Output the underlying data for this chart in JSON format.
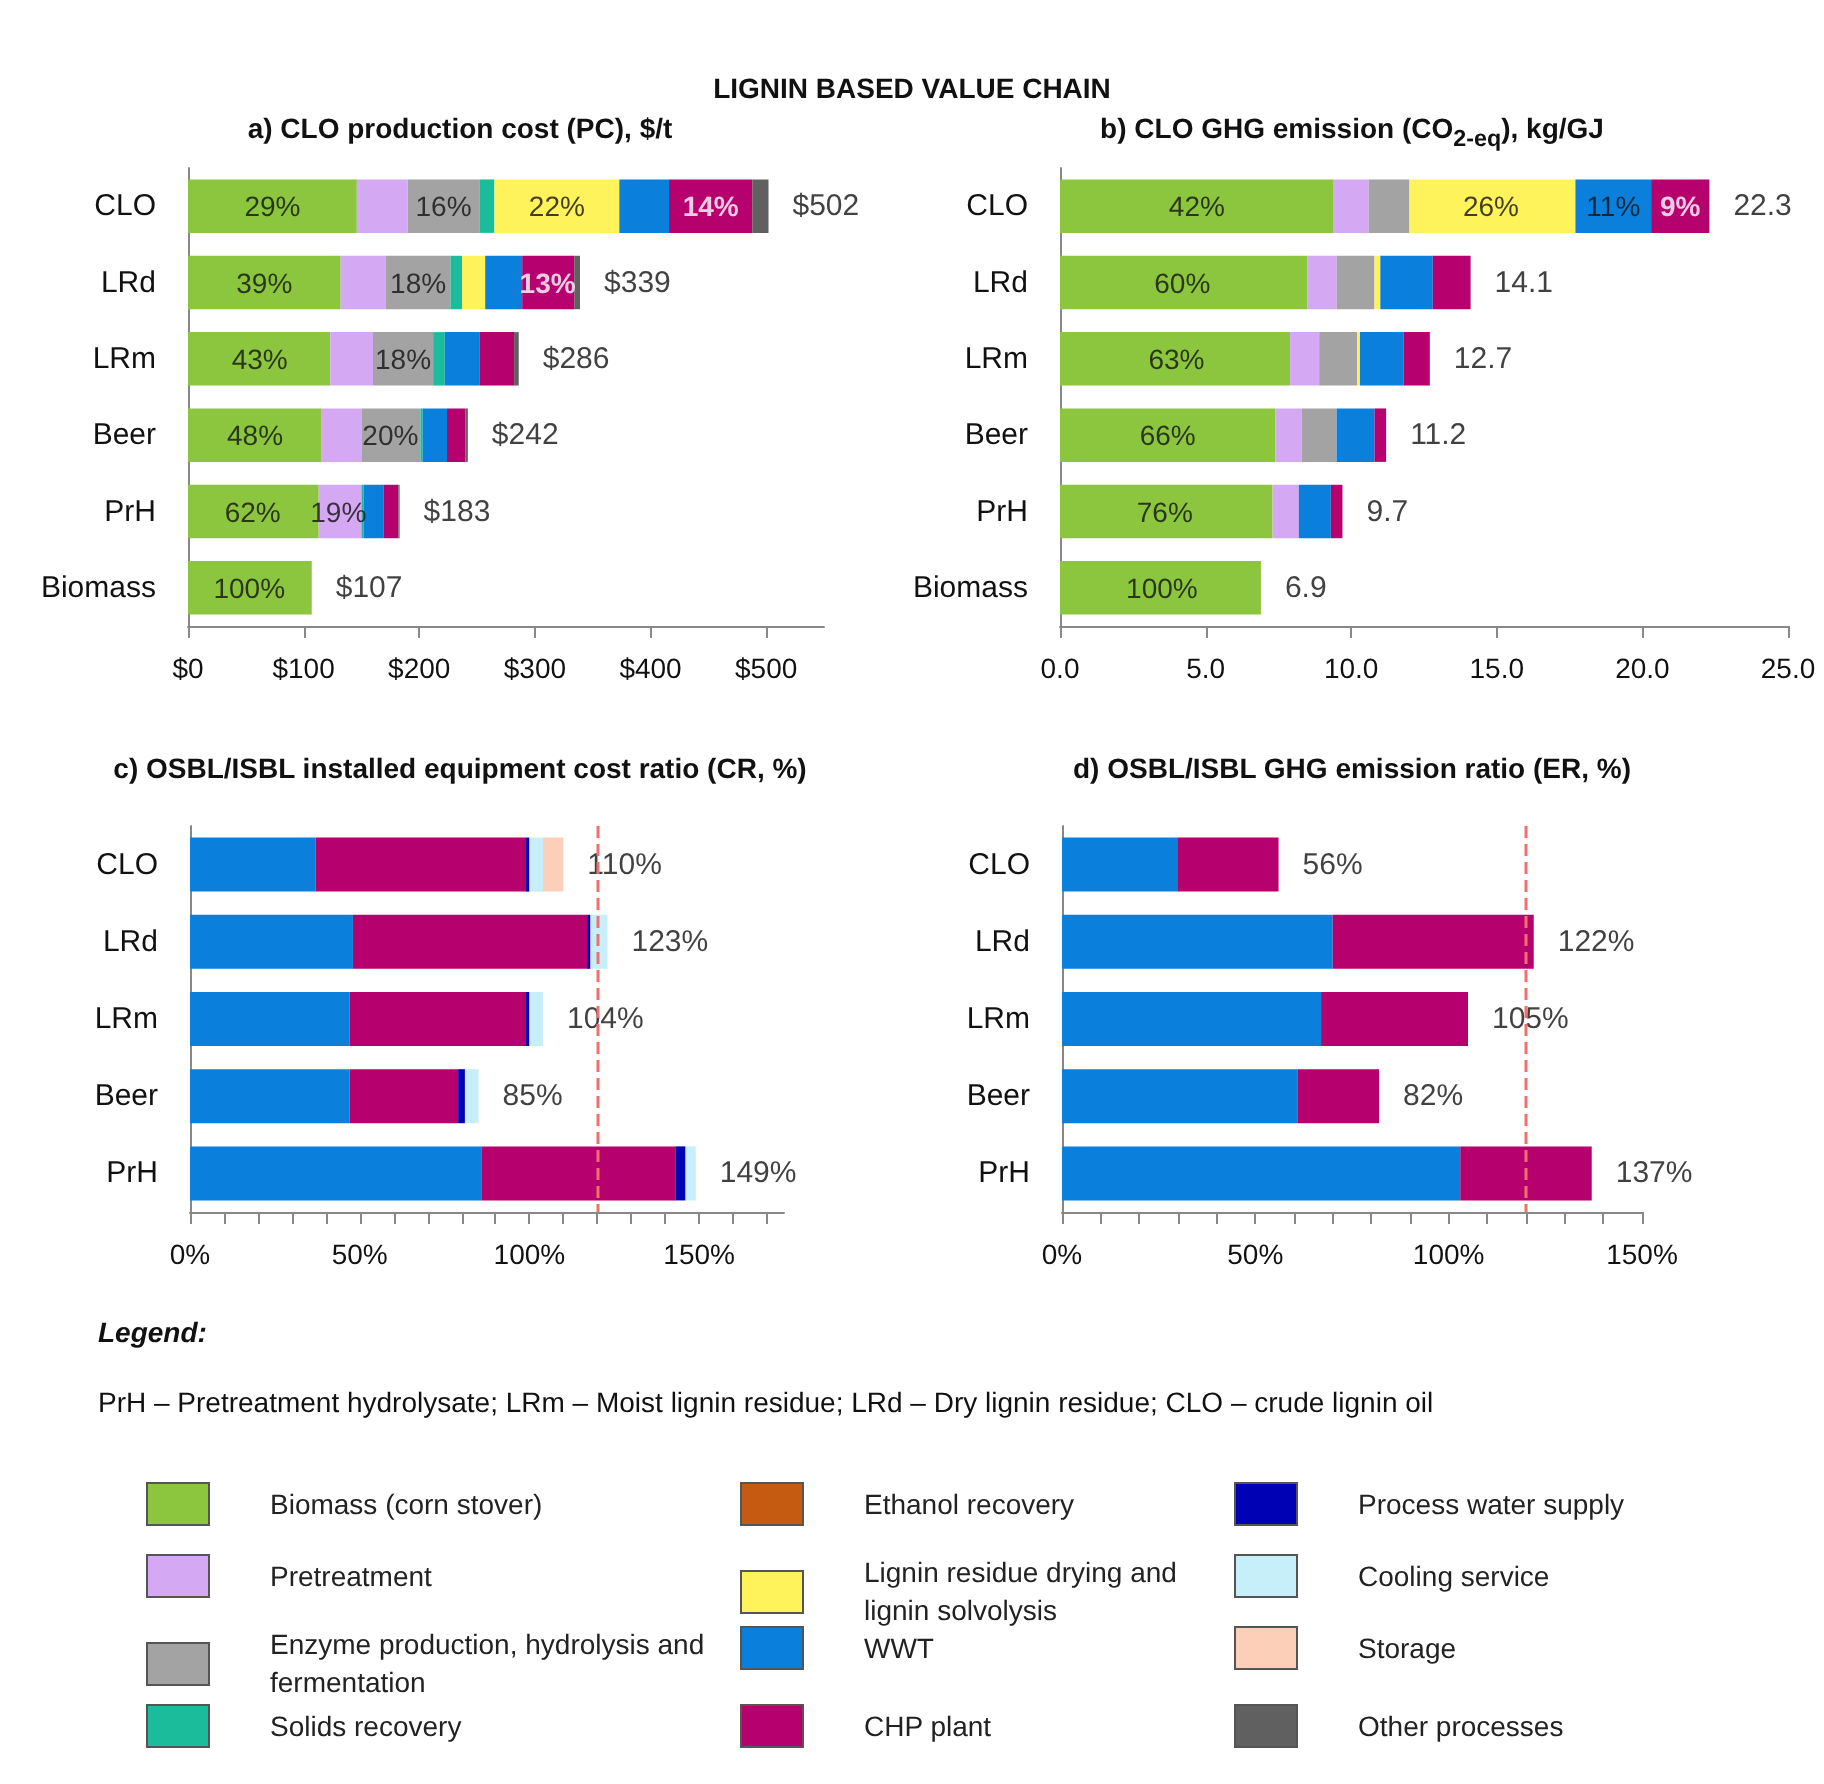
{
  "chart_data": [
    {
      "type": "bar",
      "orientation": "horizontal",
      "stacked": true,
      "title": "a) CLO production cost (PC), $/t",
      "annotations": [
        "LIGNIN BASED VALUE CHAIN",
        "Legend:",
        "PrH – Pretreatment hydrolysate;   LRm – Moist lignin residue;  LRd – Dry lignin residue;  CLO – crude lignin oil",
        {
          "text": "29%",
          "x": 73,
          "y": "CLO"
        },
        {
          "text": "16%",
          "x": 221,
          "y": "CLO"
        },
        {
          "text": "22%",
          "x": 319,
          "y": "CLO"
        },
        {
          "text": "14%",
          "x": 452,
          "y": "CLO"
        },
        {
          "text": "39%",
          "x": 66,
          "y": "LRd"
        },
        {
          "text": "18%",
          "x": 199,
          "y": "LRd"
        },
        {
          "text": "13%",
          "x": 311,
          "y": "LRd"
        },
        {
          "text": "43%",
          "x": 62,
          "y": "LRm"
        },
        {
          "text": "18%",
          "x": 186,
          "y": "LRm"
        },
        {
          "text": "48%",
          "x": 58,
          "y": "Beer"
        },
        {
          "text": "20%",
          "x": 175,
          "y": "Beer"
        },
        {
          "text": "62%",
          "x": 56,
          "y": "PrH"
        },
        {
          "text": "19%",
          "x": 130,
          "y": "PrH"
        },
        {
          "text": "100%",
          "x": 53,
          "y": "Biomass"
        }
      ],
      "categories": [
        "CLO",
        "LRd",
        "LRm",
        "Beer",
        "PrH",
        "Biomass"
      ],
      "xlim": [
        0,
        550
      ],
      "xticks": [
        {
          "value": 0,
          "label": "$0"
        },
        {
          "value": 100,
          "label": "$100"
        },
        {
          "value": 200,
          "label": "$200"
        },
        {
          "value": 300,
          "label": "$300"
        },
        {
          "value": 400,
          "label": "$400"
        },
        {
          "value": 500,
          "label": "$500"
        }
      ],
      "legend": "bottom",
      "totals": [
        "$502",
        "$339",
        "$286",
        "$242",
        "$183",
        "$107"
      ],
      "series": [
        {
          "name": "Biomass (corn stover)",
          "color": "#8cc63f",
          "values": [
            146,
            132,
            123,
            115,
            113,
            107
          ]
        },
        {
          "name": "Pretreatment",
          "color": "#d4a8f2",
          "values": [
            44,
            39,
            37,
            35,
            37,
            null
          ]
        },
        {
          "name": "Enzyme production, hydrolysis and fermentation",
          "color": "#a3a3a3",
          "values": [
            62,
            56,
            52,
            51,
            null,
            null
          ]
        },
        {
          "name": "Solids recovery",
          "color": "#1abc9c",
          "values": [
            13,
            10,
            10,
            2,
            2,
            null
          ]
        },
        {
          "name": "Ethanol recovery",
          "color": "#c55a11",
          "values": [
            null,
            null,
            null,
            null,
            null,
            null
          ]
        },
        {
          "name": "Lignin residue drying and lignin solvolysis",
          "color": "#fff35c",
          "values": [
            108,
            20,
            null,
            null,
            null,
            null
          ]
        },
        {
          "name": "WWT",
          "color": "#0a80dc",
          "values": [
            43,
            32,
            30,
            21,
            17,
            null
          ]
        },
        {
          "name": "CHP plant",
          "color": "#b5006e",
          "values": [
            72,
            45,
            30,
            16,
            13,
            null
          ]
        },
        {
          "name": "Process water supply",
          "color": "#0000b4",
          "values": [
            null,
            null,
            null,
            null,
            null,
            null
          ]
        },
        {
          "name": "Cooling service",
          "color": "#c6effa",
          "values": [
            null,
            null,
            null,
            null,
            null,
            null
          ]
        },
        {
          "name": "Storage",
          "color": "#fcd0b8",
          "values": [
            null,
            null,
            null,
            null,
            null,
            null
          ]
        },
        {
          "name": "Other processes",
          "color": "#606060",
          "values": [
            14,
            5,
            4,
            2,
            1,
            null
          ]
        }
      ]
    },
    {
      "type": "bar",
      "orientation": "horizontal",
      "stacked": true,
      "title": "b) CLO GHG emission (CO$_{2-eq}$), kg/GJ",
      "annotations": [
        {
          "text": "42%",
          "x": 4.7,
          "y": "CLO"
        },
        {
          "text": "26%",
          "x": 14.8,
          "y": "CLO"
        },
        {
          "text": "11%",
          "x": 19.0,
          "y": "CLO"
        },
        {
          "text": "9%",
          "x": 21.3,
          "y": "CLO"
        },
        {
          "text": "60%",
          "x": 4.2,
          "y": "LRd"
        },
        {
          "text": "63%",
          "x": 4.0,
          "y": "LRm"
        },
        {
          "text": "66%",
          "x": 3.7,
          "y": "Beer"
        },
        {
          "text": "76%",
          "x": 3.6,
          "y": "PrH"
        },
        {
          "text": "100%",
          "x": 3.5,
          "y": "Biomass"
        }
      ],
      "categories": [
        "CLO",
        "LRd",
        "LRm",
        "Beer",
        "PrH",
        "Biomass"
      ],
      "xlim": [
        0,
        25
      ],
      "xticks": [
        {
          "value": 0,
          "label": "0.0"
        },
        {
          "value": 5,
          "label": "5.0"
        },
        {
          "value": 10,
          "label": "10.0"
        },
        {
          "value": 15,
          "label": "15.0"
        },
        {
          "value": 20,
          "label": "20.0"
        },
        {
          "value": 25,
          "label": "25.0"
        }
      ],
      "totals": [
        "22.3",
        "14.1",
        "12.7",
        "11.2",
        "9.7",
        "6.9"
      ],
      "series": [
        {
          "color": "#8cc63f",
          "values": [
            9.4,
            8.5,
            7.9,
            7.4,
            7.3,
            6.9
          ]
        },
        {
          "color": "#d4a8f2",
          "values": [
            1.2,
            1.0,
            1.0,
            0.9,
            0.9,
            null
          ]
        },
        {
          "color": "#a3a3a3",
          "values": [
            1.4,
            1.3,
            1.3,
            1.2,
            null,
            null
          ]
        },
        {
          "color": "#fff35c",
          "values": [
            5.7,
            0.2,
            0.1,
            null,
            null,
            null
          ]
        },
        {
          "color": "#0a80dc",
          "values": [
            2.6,
            1.8,
            1.5,
            1.3,
            1.1,
            null
          ]
        },
        {
          "color": "#b5006e",
          "values": [
            2.0,
            1.3,
            0.9,
            0.4,
            0.4,
            null
          ]
        }
      ]
    },
    {
      "type": "bar",
      "orientation": "horizontal",
      "stacked": true,
      "title": "c) OSBL/ISBL installed equipment cost ratio (CR, %)",
      "categories": [
        "CLO",
        "LRd",
        "LRm",
        "Beer",
        "PrH"
      ],
      "xlim": [
        0,
        175
      ],
      "xticks": [
        {
          "value": 0,
          "label": "0%"
        },
        {
          "value": 10,
          "label": null
        },
        {
          "value": 20,
          "label": null
        },
        {
          "value": 30,
          "label": null
        },
        {
          "value": 40,
          "label": null
        },
        {
          "value": 50,
          "label": "50%"
        },
        {
          "value": 60,
          "label": null
        },
        {
          "value": 70,
          "label": null
        },
        {
          "value": 80,
          "label": null
        },
        {
          "value": 90,
          "label": null
        },
        {
          "value": 100,
          "label": "100%"
        },
        {
          "value": 110,
          "label": null
        },
        {
          "value": 120,
          "label": null
        },
        {
          "value": 130,
          "label": null
        },
        {
          "value": 140,
          "label": null
        },
        {
          "value": 150,
          "label": "150%"
        },
        {
          "value": 160,
          "label": null
        },
        {
          "value": 170,
          "label": null
        }
      ],
      "totals": [
        "110%",
        "123%",
        "104%",
        "85%",
        "149%"
      ],
      "ref_lines": [
        {
          "axis": "x",
          "value": 120,
          "color": "#f07070",
          "line_style": "dashed"
        }
      ],
      "series": [
        {
          "color": "#0a80dc",
          "values": [
            37,
            48,
            47,
            47,
            86
          ]
        },
        {
          "color": "#b5006e",
          "values": [
            62,
            69,
            52,
            32,
            57
          ]
        },
        {
          "color": "#0000b4",
          "values": [
            1,
            1,
            1,
            2,
            3
          ]
        },
        {
          "color": "#c6effa",
          "values": [
            4,
            5,
            4,
            4,
            3
          ]
        },
        {
          "color": "#fcd0b8",
          "values": [
            6,
            null,
            null,
            null,
            null
          ]
        }
      ]
    },
    {
      "type": "bar",
      "orientation": "horizontal",
      "stacked": true,
      "title": "d) OSBL/ISBL GHG emission ratio (ER, %)",
      "categories": [
        "CLO",
        "LRd",
        "LRm",
        "Beer",
        "PrH"
      ],
      "xlim": [
        0,
        150
      ],
      "xticks": [
        {
          "value": 0,
          "label": "0%"
        },
        {
          "value": 10,
          "label": null
        },
        {
          "value": 20,
          "label": null
        },
        {
          "value": 30,
          "label": null
        },
        {
          "value": 40,
          "label": null
        },
        {
          "value": 50,
          "label": "50%"
        },
        {
          "value": 60,
          "label": null
        },
        {
          "value": 70,
          "label": null
        },
        {
          "value": 80,
          "label": null
        },
        {
          "value": 90,
          "label": null
        },
        {
          "value": 100,
          "label": "100%"
        },
        {
          "value": 110,
          "label": null
        },
        {
          "value": 120,
          "label": null
        },
        {
          "value": 130,
          "label": null
        },
        {
          "value": 140,
          "label": null
        },
        {
          "value": 150,
          "label": "150%"
        }
      ],
      "totals": [
        "56%",
        "122%",
        "105%",
        "82%",
        "137%"
      ],
      "ref_lines": [
        {
          "axis": "x",
          "value": 120,
          "color": "#f07070",
          "line_style": "dashed"
        }
      ],
      "series": [
        {
          "color": "#0a80dc",
          "values": [
            30,
            70,
            67,
            61,
            103
          ]
        },
        {
          "color": "#b5006e",
          "values": [
            26,
            52,
            38,
            21,
            34
          ]
        }
      ]
    }
  ]
}
